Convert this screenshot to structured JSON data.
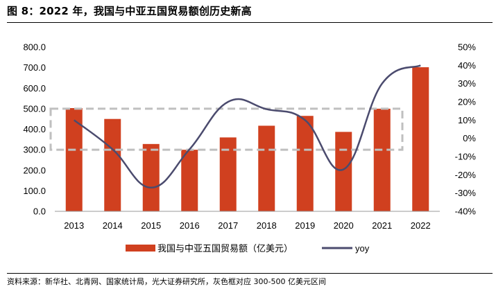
{
  "header": {
    "title": "图 8：2022 年，我国与中亚五国贸易额创历史新高"
  },
  "footer": {
    "source": "资料来源：新华社、北青网、国家统计局，光大证券研究所，灰色框对应 300-500 亿美元区间"
  },
  "colors": {
    "bar": "#D0401F",
    "line": "#4B4B6E",
    "dashed_box": "#BFBFBF"
  },
  "chart_data": {
    "type": "bar",
    "categories": [
      "2013",
      "2014",
      "2015",
      "2016",
      "2017",
      "2018",
      "2019",
      "2020",
      "2021",
      "2022"
    ],
    "series": [
      {
        "name": "我国与中亚五国贸易额（亿美元）",
        "type": "bar",
        "axis": "left",
        "values": [
          503,
          450,
          328,
          300,
          360,
          417,
          465,
          387,
          500,
          702
        ]
      },
      {
        "name": "yoy",
        "type": "line",
        "axis": "right",
        "values": [
          10,
          -6,
          -27,
          -6,
          20,
          16,
          10,
          -17,
          30,
          40
        ]
      }
    ],
    "left_axis": {
      "ylim": [
        0,
        800
      ],
      "ticks": [
        "0.0",
        "100.0",
        "200.0",
        "300.0",
        "400.0",
        "500.0",
        "600.0",
        "700.0",
        "800.0"
      ]
    },
    "right_axis": {
      "ylim": [
        -40,
        50
      ],
      "ticks": [
        "-40%",
        "-30%",
        "-20%",
        "-10%",
        "0%",
        "10%",
        "20%",
        "30%",
        "40%",
        "50%"
      ]
    },
    "highlight_band": {
      "from": 300,
      "to": 500,
      "axis": "left"
    },
    "legend": [
      "我国与中亚五国贸易额（亿美元）",
      "yoy"
    ],
    "legend_position": "bottom"
  }
}
